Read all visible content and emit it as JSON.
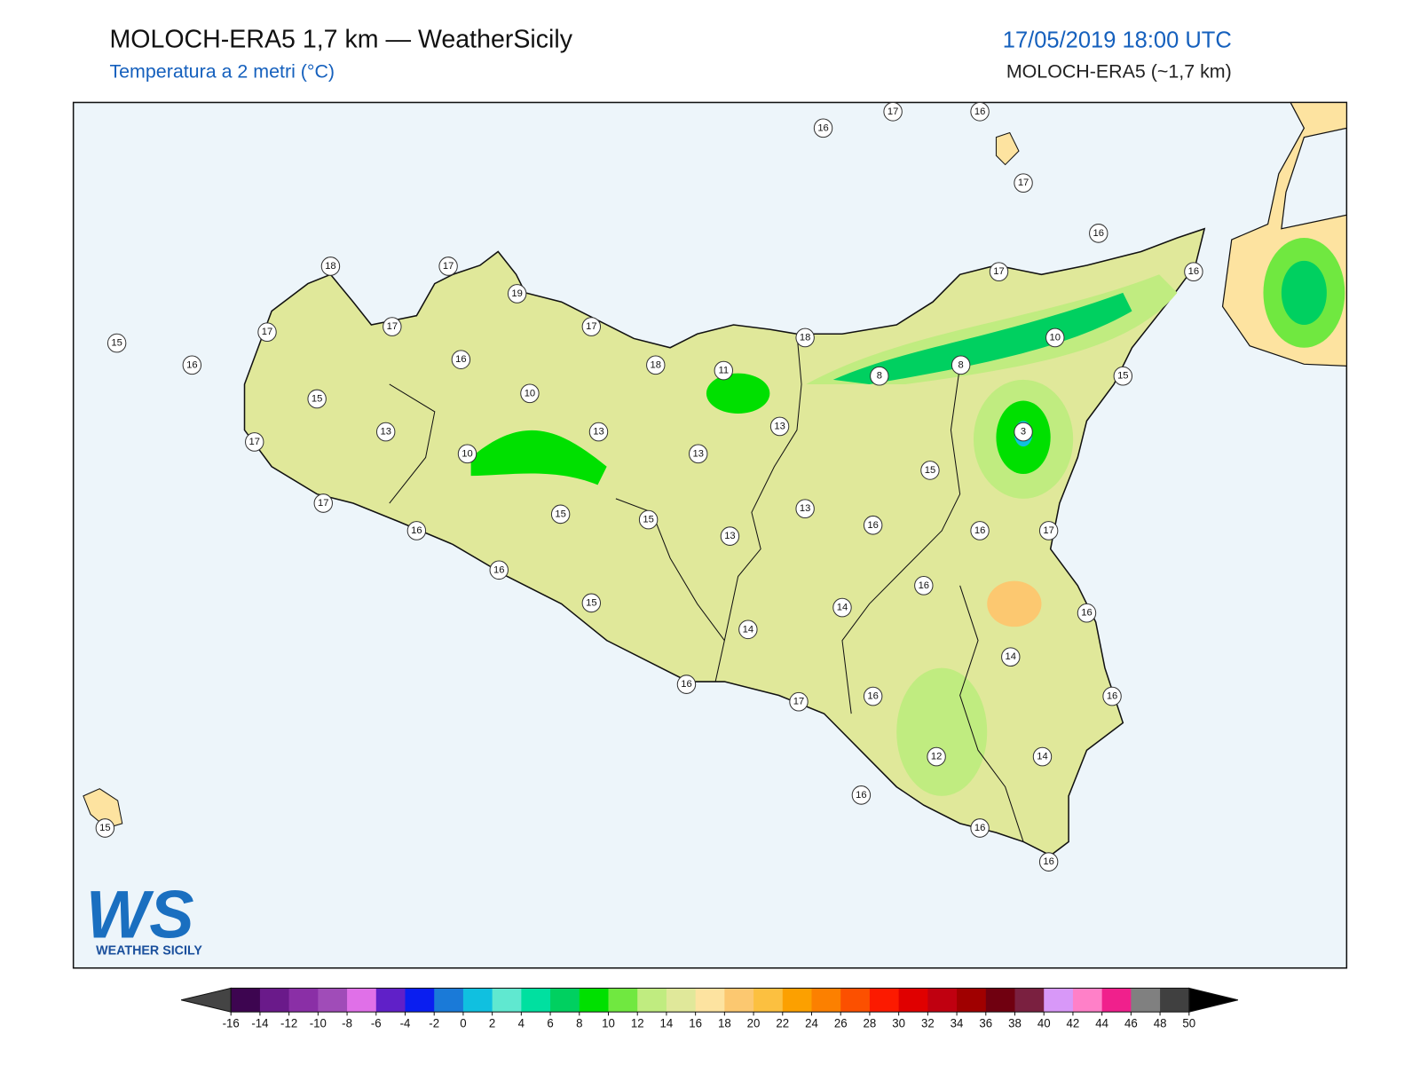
{
  "header": {
    "title": "MOLOCH-ERA5 1,7 km — WeatherSicily",
    "subtitle": "Temperatura a 2 metri (°C)",
    "datetime": "17/05/2019 18:00 UTC",
    "model": "MOLOCH-ERA5 (~1,7 km)"
  },
  "logo": {
    "text": "WS",
    "caption": "WEATHER SICILY"
  },
  "stations": [
    16,
    17,
    16,
    17,
    16,
    16,
    17,
    10,
    15,
    8,
    8,
    3,
    18,
    11,
    13,
    18,
    17,
    19,
    17,
    18,
    17,
    17,
    15,
    16,
    16,
    10,
    15,
    13,
    17,
    10,
    13,
    13,
    15,
    13,
    16,
    16,
    17,
    17,
    16,
    15,
    15,
    13,
    16,
    15,
    16,
    14,
    16,
    14,
    14,
    16,
    17,
    16,
    16,
    12,
    14,
    16,
    16,
    16,
    15
  ],
  "colorbar": {
    "ticks": [
      -16,
      -14,
      -12,
      -10,
      -8,
      -6,
      -4,
      -2,
      0,
      2,
      4,
      6,
      8,
      10,
      12,
      14,
      16,
      18,
      20,
      22,
      24,
      26,
      28,
      30,
      32,
      34,
      36,
      38,
      40,
      42,
      44,
      46,
      48,
      50
    ],
    "colors": [
      "#3d0550",
      "#6a1a8a",
      "#8a2fa6",
      "#a04cb8",
      "#e070e8",
      "#6020c8",
      "#0a1ef0",
      "#1a7ad8",
      "#10c0e0",
      "#60e8d0",
      "#00e0a0",
      "#00d060",
      "#00e000",
      "#70e840",
      "#c0ec80",
      "#e0e89a",
      "#fde3a0",
      "#fcc870",
      "#fcc040",
      "#fca000",
      "#fc8000",
      "#fc5000",
      "#fc1a00",
      "#e00000",
      "#c00010",
      "#a00000",
      "#700010",
      "#7a2040",
      "#d898f8",
      "#ff80c8",
      "#f0208c",
      "#808080",
      "#404040"
    ],
    "under_color": "#444444",
    "over_color": "#000000"
  }
}
